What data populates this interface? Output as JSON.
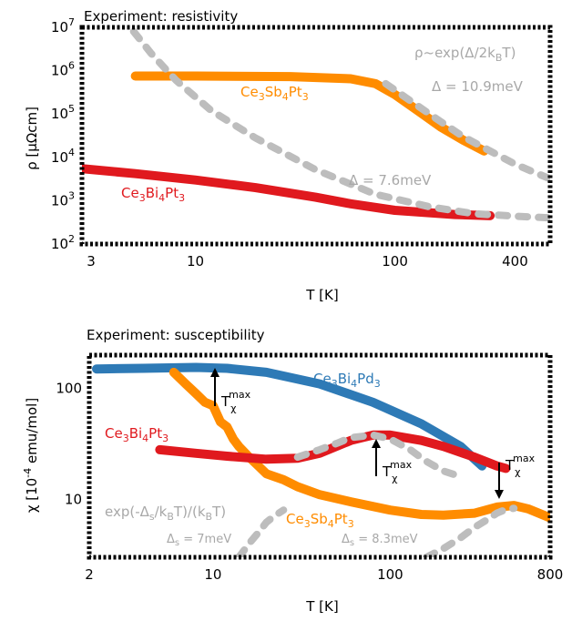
{
  "colors": {
    "orange": "#ff8c00",
    "red": "#e0191e",
    "blue": "#2e7ab6",
    "gray": "#bdbdbd",
    "gray_text": "#a8a8a8"
  },
  "chart_data": [
    {
      "type": "line",
      "title": "Experiment: resistivity",
      "xlabel": "T [K]",
      "ylabel": "ρ [μΩcm]",
      "xscale": "log",
      "yscale": "log",
      "xlim": [
        2.7,
        600
      ],
      "ylim": [
        100,
        10000000
      ],
      "xtick_labels": [
        "3",
        "10",
        "100",
        "400"
      ],
      "xtick_values": [
        3,
        10,
        100,
        400
      ],
      "ytick_labels": [
        "10²",
        "10³",
        "10⁴",
        "10⁵",
        "10⁶",
        "10⁷"
      ],
      "ytick_values": [
        100,
        1000,
        10000,
        100000,
        1000000,
        10000000
      ],
      "series": [
        {
          "name": "Ce3Sb4Pt3",
          "label_parts": [
            "Ce",
            "3",
            "Sb",
            "4",
            "Pt",
            "3"
          ],
          "color": "orange",
          "style": "solid",
          "x": [
            5.0,
            10,
            30,
            60,
            80,
            100,
            130,
            170,
            220,
            280
          ],
          "y": [
            750000,
            750000,
            730000,
            650000,
            500000,
            280000,
            120000,
            50000,
            25000,
            14000
          ]
        },
        {
          "name": "Ce3Bi4Pt3",
          "label_parts": [
            "Ce",
            "Bi",
            "Pt"
          ],
          "label_subs": [
            "3",
            "4",
            "3"
          ],
          "color": "red",
          "style": "solid",
          "x": [
            2.7,
            5,
            10,
            20,
            40,
            60,
            100,
            200,
            300
          ],
          "y": [
            5500,
            4200,
            3000,
            2000,
            1200,
            850,
            600,
            480,
            450
          ]
        },
        {
          "name": "",
          "color": "gray",
          "style": "dotted",
          "x": [
            4.9,
            6,
            8,
            12,
            20,
            40,
            80,
            150,
            250,
            400,
            600
          ],
          "y": [
            8000000,
            2500000,
            600000,
            120000,
            28000,
            5200,
            1400,
            720,
            500,
            440,
            400
          ]
        },
        {
          "name": "",
          "color": "gray",
          "style": "dotted",
          "x": [
            90,
            120,
            160,
            220,
            300,
            400,
            500,
            600
          ],
          "y": [
            500000,
            200000,
            80000,
            30000,
            14000,
            7000,
            4500,
            3200
          ]
        }
      ],
      "annotations": {
        "formula": "ρ~exp(Δ/2kBT)",
        "gap_sb": "Δ = 10.9meV",
        "gap_bi": "Δ = 7.6meV"
      }
    },
    {
      "type": "line",
      "title": "Experiment: susceptibility",
      "xlabel": "T [K]",
      "ylabel": "χ [10⁻⁴ emu/mol]",
      "xscale": "log",
      "yscale": "log",
      "xlim": [
        2,
        800
      ],
      "ylim": [
        3,
        200
      ],
      "xtick_labels": [
        "2",
        "10",
        "100",
        "800"
      ],
      "xtick_values": [
        2,
        10,
        100,
        800
      ],
      "ytick_labels": [
        "10",
        "100"
      ],
      "ytick_values": [
        10,
        100
      ],
      "series": [
        {
          "name": "Ce3Bi4Pd3",
          "color": "blue",
          "style": "solid",
          "x": [
            2.2,
            4,
            8,
            12,
            20,
            40,
            80,
            150,
            250,
            330
          ],
          "y": [
            150,
            152,
            155,
            152,
            140,
            110,
            75,
            48,
            30,
            20
          ]
        },
        {
          "name": "Ce3Sb4Pt3",
          "color": "orange",
          "style": "solid",
          "x": [
            6,
            7,
            8,
            9,
            10,
            11,
            12,
            13,
            14,
            16,
            18,
            20,
            25,
            30,
            40,
            60,
            100,
            150,
            200,
            300,
            400,
            500,
            600,
            800
          ],
          "y": [
            140,
            110,
            90,
            75,
            70,
            50,
            45,
            35,
            30,
            24,
            20,
            17,
            15,
            13,
            11,
            9.5,
            8,
            7.3,
            7.2,
            7.5,
            8.5,
            8.8,
            8.2,
            6.8
          ]
        },
        {
          "name": "Ce3Bi4Pt3",
          "color": "red",
          "style": "solid",
          "x": [
            5,
            8,
            12,
            20,
            30,
            40,
            60,
            80,
            100,
            150,
            200,
            300,
            400,
            450
          ],
          "y": [
            28,
            26,
            24.5,
            23,
            23.5,
            26,
            34,
            38,
            38,
            34,
            30,
            24,
            20,
            19
          ]
        },
        {
          "name": "",
          "color": "gray",
          "style": "dotted",
          "x": [
            30,
            40,
            50,
            60,
            80,
            100,
            130,
            160,
            200,
            250
          ],
          "y": [
            24,
            28,
            32,
            36,
            38,
            35,
            28,
            22,
            18,
            16
          ]
        },
        {
          "name": "",
          "color": "gray",
          "style": "dotted",
          "x": [
            14,
            16,
            18,
            20,
            22,
            25
          ],
          "y": [
            3,
            4,
            5,
            6.2,
            7,
            8
          ]
        },
        {
          "name": "",
          "color": "gray",
          "style": "dotted",
          "x": [
            160,
            200,
            250,
            300,
            350,
            400,
            450,
            500
          ],
          "y": [
            3,
            3.6,
            4.5,
            5.6,
            6.5,
            7.5,
            8.1,
            8.3
          ]
        }
      ],
      "annotations": {
        "formula": "exp(-Δs/kBT)/(kBT)",
        "gap_7": "Δs = 7meV",
        "gap_83": "Δs = 8.3meV",
        "tmax_label": "Tχmax"
      }
    }
  ]
}
